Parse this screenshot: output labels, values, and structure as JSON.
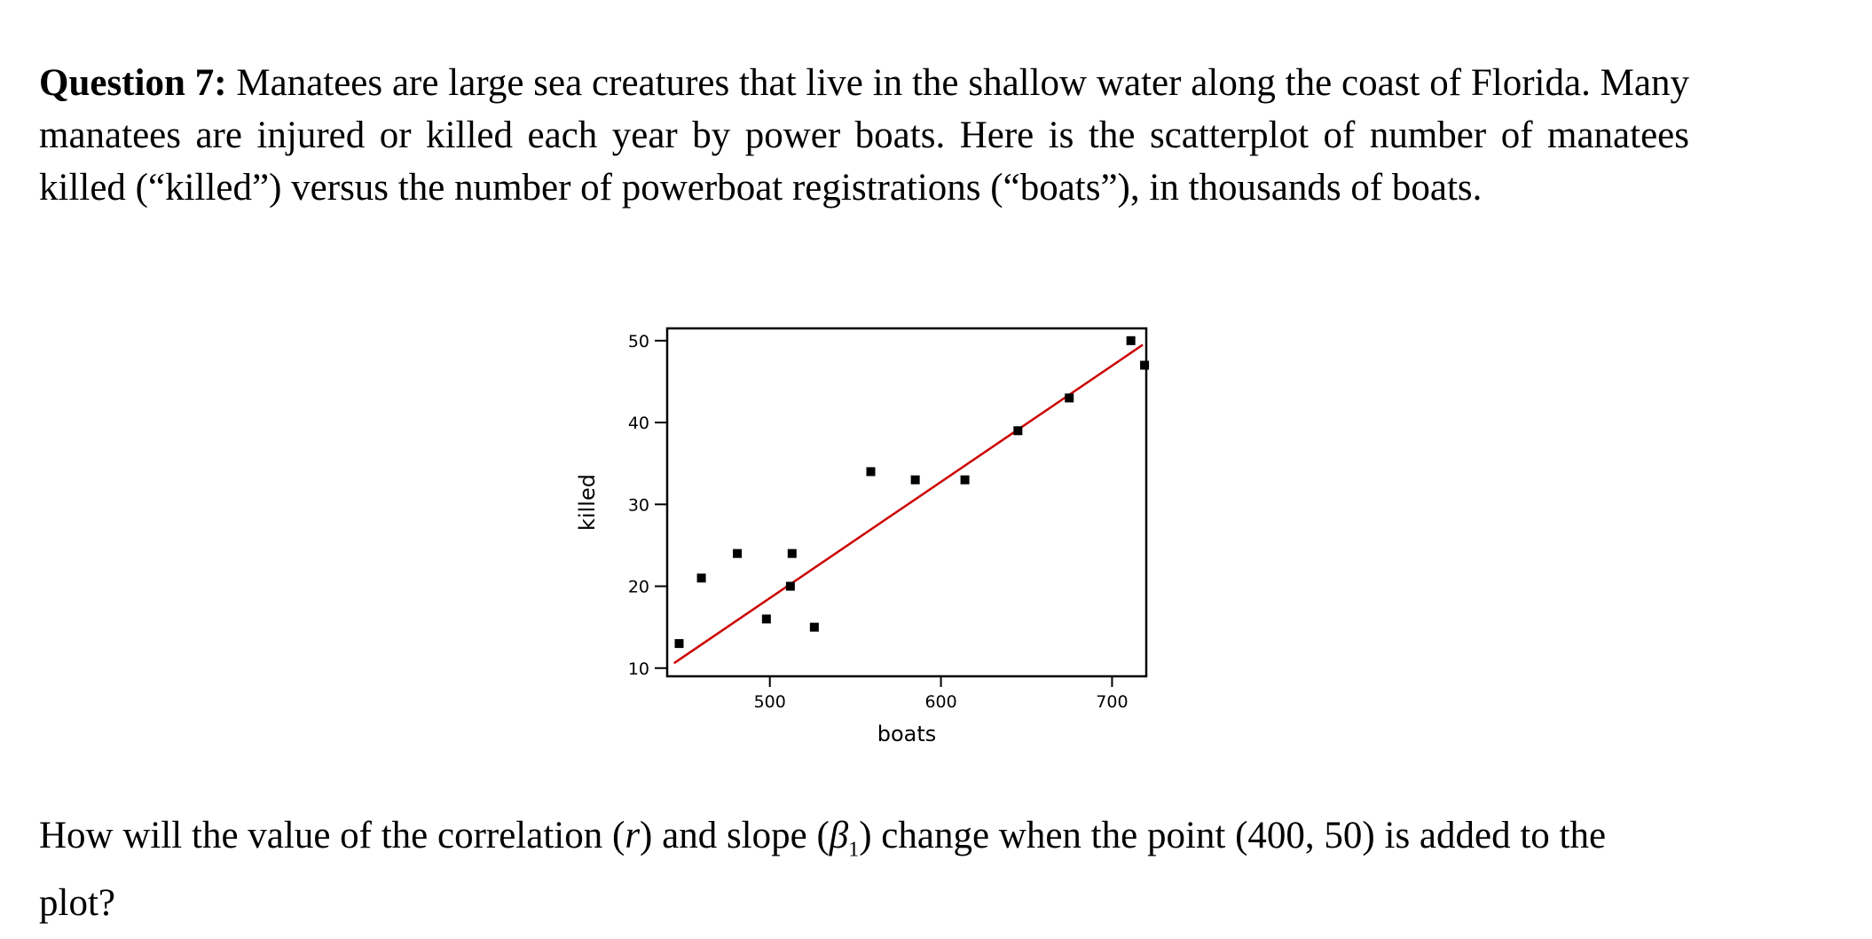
{
  "document": {
    "question_label": "Question 7:",
    "intro_text": "Manatees are large sea creatures that live in the shallow water along the coast of Florida. Many manatees are injured or killed each year by power boats. Here is the scatterplot of number of manatees killed (“killed”) versus the number of powerboat registrations (“boats”), in thousands of boats.",
    "question_before_r": "How will the value of the correlation (",
    "r_symbol": "r",
    "question_mid": ") and slope (",
    "beta_symbol": "β",
    "beta_subscript": "1",
    "question_after": ") change when the point (400, 50) is added to the plot?"
  },
  "chart_data": {
    "type": "scatter",
    "xlabel": "boats",
    "ylabel": "killed",
    "xlim": [
      440,
      720
    ],
    "ylim": [
      9,
      51.5
    ],
    "xticks": [
      500,
      600,
      700
    ],
    "yticks": [
      10,
      20,
      30,
      40,
      50
    ],
    "grid": false,
    "points": [
      {
        "x": 447,
        "y": 13
      },
      {
        "x": 460,
        "y": 21
      },
      {
        "x": 481,
        "y": 24
      },
      {
        "x": 498,
        "y": 16
      },
      {
        "x": 513,
        "y": 24
      },
      {
        "x": 512,
        "y": 20
      },
      {
        "x": 526,
        "y": 15
      },
      {
        "x": 559,
        "y": 34
      },
      {
        "x": 585,
        "y": 33
      },
      {
        "x": 614,
        "y": 33
      },
      {
        "x": 645,
        "y": 39
      },
      {
        "x": 675,
        "y": 43
      },
      {
        "x": 711,
        "y": 50
      },
      {
        "x": 719,
        "y": 47
      }
    ],
    "regression_line": {
      "x": [
        444,
        718
      ],
      "y": [
        10.6,
        49.5
      ],
      "color": "#cc0000"
    },
    "point_color": "#000000"
  }
}
